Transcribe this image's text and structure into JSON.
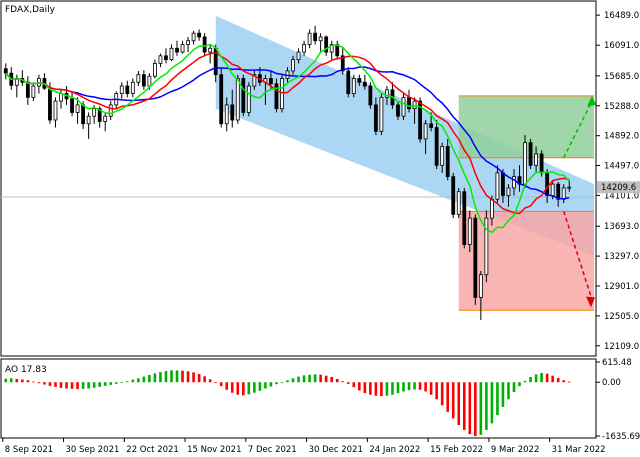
{
  "window": {
    "symbol_title": "FDAX,Daily"
  },
  "colors": {
    "bull": "#000000",
    "bear": "#000000",
    "ma_blue": "#0000ff",
    "ma_red": "#ff0000",
    "ma_green": "#00ee00",
    "channel_fill": "#87c5f0",
    "target_box": "#8fcf9a",
    "stop_box": "#f8a7a7",
    "box_edge": "#ff7f00",
    "ao_up": "#00b000",
    "ao_down": "#ff0000",
    "current_price_box": "#c0c0c0"
  },
  "price_axis": {
    "ticks": [
      "16489.0",
      "16091.0",
      "15685.0",
      "15288.0",
      "14892.0",
      "14497.0",
      "14101.0",
      "13693.0",
      "13297.0",
      "12901.0",
      "12505.0",
      "12109.0"
    ],
    "current_price": "14209.6"
  },
  "ao": {
    "label": "AO 17.83",
    "ticks": [
      "615.48",
      "0.00",
      "-1635.69"
    ]
  },
  "time_axis": {
    "labels": [
      "8 Sep 2021",
      "30 Sep 2021",
      "22 Oct 2021",
      "15 Nov 2021",
      "7 Dec 2021",
      "30 Dec 2021",
      "24 Jan 2022",
      "15 Feb 2022",
      "9 Mar 2022",
      "31 Mar 2022"
    ]
  },
  "chart_data": {
    "type": "candlestick",
    "symbol": "FDAX",
    "timeframe": "Daily",
    "ylim": [
      12000,
      16650
    ],
    "ohlc": [
      [
        15780,
        15850,
        15640,
        15720
      ],
      [
        15720,
        15800,
        15500,
        15560
      ],
      [
        15560,
        15700,
        15400,
        15650
      ],
      [
        15650,
        15760,
        15550,
        15600
      ],
      [
        15600,
        15680,
        15300,
        15400
      ],
      [
        15400,
        15600,
        15350,
        15550
      ],
      [
        15550,
        15700,
        15450,
        15650
      ],
      [
        15650,
        15720,
        15500,
        15520
      ],
      [
        15520,
        15600,
        15050,
        15100
      ],
      [
        15100,
        15400,
        15000,
        15350
      ],
      [
        15350,
        15500,
        15250,
        15450
      ],
      [
        15450,
        15550,
        15300,
        15380
      ],
      [
        15380,
        15480,
        15150,
        15200
      ],
      [
        15200,
        15400,
        15050,
        15300
      ],
      [
        15300,
        15350,
        14980,
        15050
      ],
      [
        15050,
        15200,
        14850,
        15150
      ],
      [
        15150,
        15300,
        15050,
        15250
      ],
      [
        15250,
        15280,
        15000,
        15080
      ],
      [
        15080,
        15200,
        14950,
        15150
      ],
      [
        15150,
        15350,
        15100,
        15300
      ],
      [
        15300,
        15480,
        15250,
        15450
      ],
      [
        15450,
        15600,
        15380,
        15550
      ],
      [
        15550,
        15620,
        15400,
        15450
      ],
      [
        15450,
        15650,
        15400,
        15600
      ],
      [
        15600,
        15750,
        15550,
        15700
      ],
      [
        15700,
        15760,
        15500,
        15550
      ],
      [
        15550,
        15720,
        15500,
        15680
      ],
      [
        15680,
        15900,
        15650,
        15850
      ],
      [
        15850,
        15980,
        15800,
        15950
      ],
      [
        15950,
        16050,
        15850,
        15900
      ],
      [
        15900,
        16100,
        15880,
        16050
      ],
      [
        16050,
        16150,
        15950,
        16000
      ],
      [
        16000,
        16150,
        15980,
        16100
      ],
      [
        16100,
        16200,
        16000,
        16150
      ],
      [
        16150,
        16280,
        16100,
        16250
      ],
      [
        16250,
        16300,
        16150,
        16200
      ],
      [
        16200,
        16250,
        15950,
        16000
      ],
      [
        16000,
        16100,
        15850,
        16050
      ],
      [
        16050,
        16100,
        15600,
        15700
      ],
      [
        15700,
        15800,
        15000,
        15050
      ],
      [
        15050,
        15400,
        14950,
        15300
      ],
      [
        15300,
        15500,
        15000,
        15100
      ],
      [
        15100,
        15700,
        15050,
        15650
      ],
      [
        15650,
        15700,
        15150,
        15200
      ],
      [
        15200,
        15600,
        15150,
        15550
      ],
      [
        15550,
        15750,
        15500,
        15700
      ],
      [
        15700,
        15800,
        15550,
        15600
      ],
      [
        15600,
        15700,
        15300,
        15650
      ],
      [
        15650,
        15750,
        15500,
        15580
      ],
      [
        15580,
        15650,
        15200,
        15250
      ],
      [
        15250,
        15700,
        15200,
        15650
      ],
      [
        15650,
        15800,
        15600,
        15750
      ],
      [
        15750,
        15950,
        15700,
        15900
      ],
      [
        15900,
        16050,
        15850,
        16000
      ],
      [
        16000,
        16150,
        15950,
        16100
      ],
      [
        16100,
        16300,
        16050,
        16250
      ],
      [
        16250,
        16350,
        16100,
        16150
      ],
      [
        16150,
        16250,
        16000,
        16200
      ],
      [
        16200,
        16220,
        15950,
        16000
      ],
      [
        16000,
        16150,
        15900,
        16100
      ],
      [
        16100,
        16150,
        15900,
        15950
      ],
      [
        15950,
        16050,
        15700,
        15750
      ],
      [
        15750,
        15800,
        15400,
        15450
      ],
      [
        15450,
        15700,
        15400,
        15650
      ],
      [
        15650,
        15700,
        15550,
        15600
      ],
      [
        15600,
        15700,
        15500,
        15550
      ],
      [
        15550,
        15600,
        15250,
        15300
      ],
      [
        15300,
        15400,
        14900,
        14950
      ],
      [
        14950,
        15450,
        14900,
        15400
      ],
      [
        15400,
        15550,
        15300,
        15500
      ],
      [
        15500,
        15600,
        15250,
        15300
      ],
      [
        15300,
        15350,
        15100,
        15150
      ],
      [
        15150,
        15450,
        15100,
        15400
      ],
      [
        15400,
        15500,
        15200,
        15250
      ],
      [
        15250,
        15400,
        15050,
        15350
      ],
      [
        15350,
        15400,
        14800,
        14850
      ],
      [
        14850,
        15100,
        14650,
        15050
      ],
      [
        15050,
        15200,
        14950,
        15000
      ],
      [
        15000,
        15100,
        14450,
        14500
      ],
      [
        14500,
        14800,
        14400,
        14750
      ],
      [
        14750,
        14850,
        14300,
        14350
      ],
      [
        14350,
        14400,
        13800,
        13850
      ],
      [
        13850,
        14200,
        13800,
        14150
      ],
      [
        14150,
        14200,
        13400,
        13450
      ],
      [
        13450,
        13900,
        13350,
        13800
      ],
      [
        13800,
        13850,
        12650,
        12750
      ],
      [
        12750,
        13100,
        12450,
        13050
      ],
      [
        13050,
        13900,
        12950,
        13800
      ],
      [
        13800,
        14100,
        13700,
        14050
      ],
      [
        14050,
        14500,
        14000,
        14400
      ],
      [
        14400,
        14450,
        14000,
        14100
      ],
      [
        14100,
        14250,
        13950,
        14200
      ],
      [
        14200,
        14450,
        14100,
        14350
      ],
      [
        14350,
        14500,
        14150,
        14250
      ],
      [
        14250,
        14900,
        14200,
        14800
      ],
      [
        14800,
        14850,
        14450,
        14500
      ],
      [
        14500,
        14750,
        14400,
        14650
      ],
      [
        14650,
        14700,
        14350,
        14400
      ],
      [
        14400,
        14450,
        14000,
        14100
      ],
      [
        14100,
        14300,
        14050,
        14250
      ],
      [
        14250,
        14280,
        13950,
        14050
      ],
      [
        14050,
        14250,
        14000,
        14200
      ],
      [
        14200,
        14300,
        14150,
        14210
      ]
    ],
    "moving_averages": [
      {
        "name": "MA blue",
        "color": "blue"
      },
      {
        "name": "MA red",
        "color": "red"
      },
      {
        "name": "MA green",
        "color": "green"
      }
    ],
    "channel": {
      "upper_start": [
        0.36,
        16480
      ],
      "upper_end": [
        1.0,
        14250
      ],
      "lower_start": [
        0.36,
        15250
      ],
      "lower_end": [
        1.0,
        13300
      ]
    },
    "target_zone": {
      "top": 15420,
      "bottom": 14600
    },
    "stop_zone": {
      "top": 13890,
      "bottom": 12580
    },
    "ao_values": [
      110,
      120,
      100,
      80,
      60,
      20,
      -30,
      -70,
      -110,
      -140,
      -170,
      -190,
      -200,
      -210,
      -200,
      -190,
      -170,
      -140,
      -110,
      -80,
      -50,
      -10,
      30,
      80,
      120,
      170,
      220,
      270,
      310,
      340,
      360,
      360,
      350,
      330,
      300,
      250,
      180,
      90,
      -20,
      -120,
      -230,
      -320,
      -380,
      -400,
      -370,
      -320,
      -260,
      -190,
      -130,
      -60,
      0,
      60,
      120,
      170,
      210,
      230,
      240,
      230,
      200,
      160,
      100,
      30,
      -50,
      -150,
      -250,
      -330,
      -380,
      -410,
      -420,
      -410,
      -380,
      -330,
      -280,
      -240,
      -220,
      -230,
      -280,
      -380,
      -520,
      -700,
      -900,
      -1100,
      -1300,
      -1450,
      -1580,
      -1640,
      -1600,
      -1450,
      -1250,
      -1000,
      -750,
      -520,
      -300,
      -120,
      40,
      160,
      240,
      280,
      260,
      200,
      130,
      60,
      18
    ]
  }
}
